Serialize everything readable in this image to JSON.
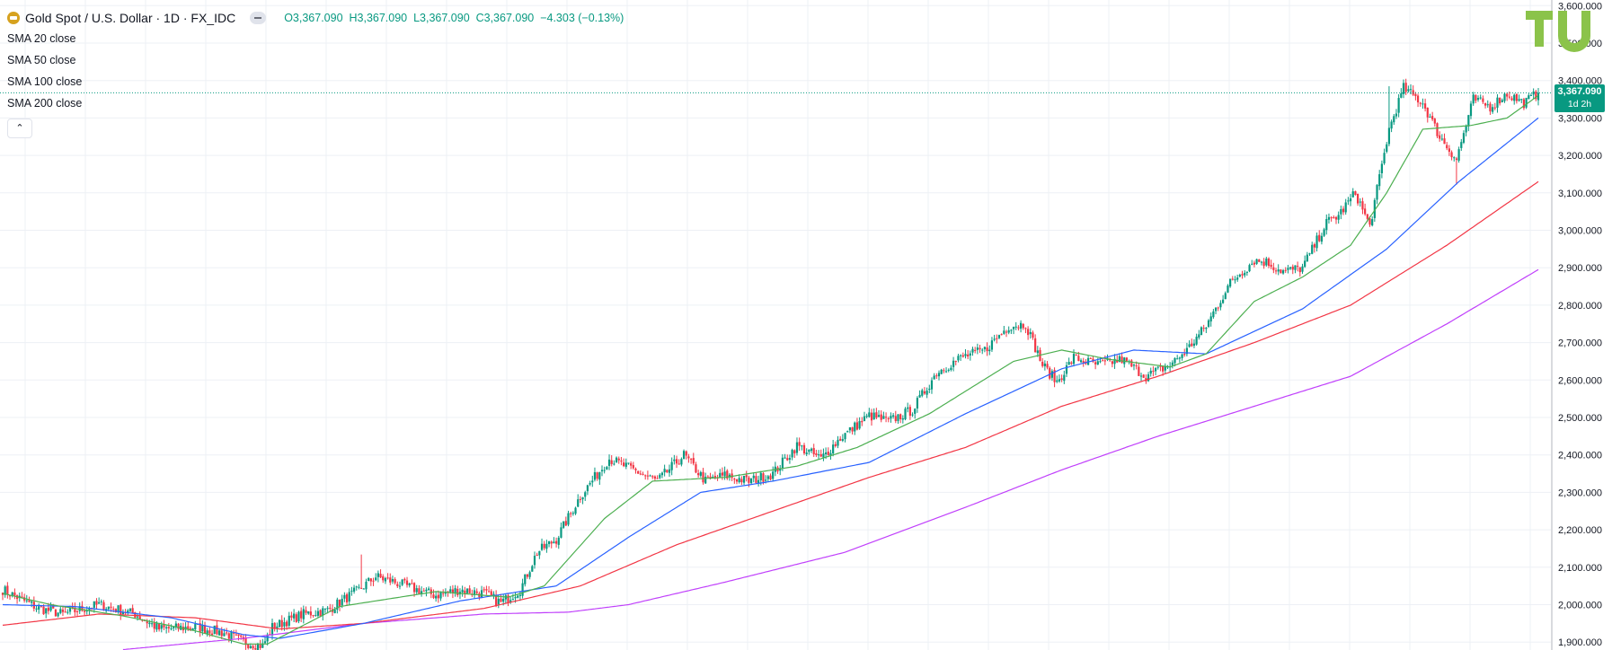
{
  "header": {
    "symbol_title": "Gold Spot / U.S. Dollar · 1D · FX_IDC",
    "open": "3,367.090",
    "high": "3,367.090",
    "low": "3,367.090",
    "close": "3,367.090",
    "change": "−4.303 (−0.13%)",
    "labels": {
      "o": "O",
      "h": "H",
      "l": "L",
      "c": "C"
    }
  },
  "indicators": [
    "SMA 20 close",
    "SMA 50 close",
    "SMA 100 close",
    "SMA 200 close"
  ],
  "last_price_tag": {
    "price": "3,367.090",
    "countdown": "1d 2h"
  },
  "colors": {
    "up": "#089981",
    "down": "#f23645",
    "sma20": "#4caf50",
    "sma50": "#2962ff",
    "sma100": "#f23645",
    "sma200": "#c040fb",
    "grid": "#edf0f5",
    "axis_text": "#131722",
    "logo": "#8bc34a"
  },
  "chart_data": {
    "type": "candlestick",
    "title": "Gold Spot / U.S. Dollar · 1D · FX_IDC",
    "ylim": [
      1880,
      3620
    ],
    "y_ticks": [
      1900,
      2000,
      2100,
      2200,
      2300,
      2400,
      2500,
      2600,
      2700,
      2800,
      2900,
      3000,
      3100,
      3200,
      3300,
      3400,
      3500,
      3600
    ],
    "y_tick_labels": [
      "1,900.000",
      "2,000.000",
      "2,100.000",
      "2,200.000",
      "2,300.000",
      "2,400.000",
      "2,500.000",
      "2,600.000",
      "2,700.000",
      "2,800.000",
      "2,900.000",
      "3,000.000",
      "3,100.000",
      "3,200.000",
      "3,300.000",
      "3,400.000",
      "3,500.000",
      "3,600.000"
    ],
    "last_price": 3367.09,
    "close_key_points": [
      [
        0,
        2040
      ],
      [
        15,
        1990
      ],
      [
        25,
        1975
      ],
      [
        40,
        2000
      ],
      [
        55,
        1975
      ],
      [
        65,
        1935
      ],
      [
        80,
        1940
      ],
      [
        92,
        1925
      ],
      [
        100,
        1900
      ],
      [
        108,
        1890
      ],
      [
        112,
        1940
      ],
      [
        125,
        1975
      ],
      [
        135,
        1985
      ],
      [
        148,
        2040
      ],
      [
        155,
        2075
      ],
      [
        163,
        2060
      ],
      [
        172,
        2040
      ],
      [
        180,
        2025
      ],
      [
        190,
        2040
      ],
      [
        200,
        2030
      ],
      [
        207,
        2005
      ],
      [
        215,
        2040
      ],
      [
        222,
        2140
      ],
      [
        230,
        2175
      ],
      [
        240,
        2290
      ],
      [
        252,
        2390
      ],
      [
        262,
        2360
      ],
      [
        272,
        2330
      ],
      [
        283,
        2400
      ],
      [
        292,
        2330
      ],
      [
        300,
        2345
      ],
      [
        310,
        2330
      ],
      [
        320,
        2350
      ],
      [
        330,
        2425
      ],
      [
        340,
        2390
      ],
      [
        348,
        2445
      ],
      [
        360,
        2505
      ],
      [
        368,
        2490
      ],
      [
        378,
        2520
      ],
      [
        388,
        2620
      ],
      [
        398,
        2660
      ],
      [
        408,
        2680
      ],
      [
        418,
        2745
      ],
      [
        425,
        2750
      ],
      [
        432,
        2640
      ],
      [
        438,
        2595
      ],
      [
        445,
        2660
      ],
      [
        455,
        2640
      ],
      [
        465,
        2655
      ],
      [
        475,
        2610
      ],
      [
        485,
        2640
      ],
      [
        492,
        2680
      ],
      [
        500,
        2745
      ],
      [
        510,
        2860
      ],
      [
        520,
        2920
      ],
      [
        525,
        2915
      ],
      [
        532,
        2890
      ],
      [
        540,
        2900
      ],
      [
        550,
        3020
      ],
      [
        555,
        3040
      ],
      [
        562,
        3100
      ],
      [
        568,
        3010
      ],
      [
        576,
        3270
      ],
      [
        582,
        3380
      ],
      [
        590,
        3340
      ],
      [
        597,
        3250
      ],
      [
        604,
        3190
      ],
      [
        611,
        3350
      ],
      [
        618,
        3330
      ],
      [
        625,
        3365
      ],
      [
        632,
        3340
      ],
      [
        638,
        3367
      ]
    ],
    "sma_20_key_points": [
      [
        0,
        2030
      ],
      [
        20,
        2000
      ],
      [
        50,
        1970
      ],
      [
        80,
        1930
      ],
      [
        100,
        1895
      ],
      [
        110,
        1895
      ],
      [
        140,
        1995
      ],
      [
        180,
        2035
      ],
      [
        210,
        2020
      ],
      [
        225,
        2050
      ],
      [
        250,
        2230
      ],
      [
        270,
        2330
      ],
      [
        300,
        2340
      ],
      [
        330,
        2370
      ],
      [
        355,
        2420
      ],
      [
        385,
        2510
      ],
      [
        420,
        2650
      ],
      [
        440,
        2680
      ],
      [
        460,
        2655
      ],
      [
        485,
        2635
      ],
      [
        500,
        2670
      ],
      [
        520,
        2810
      ],
      [
        540,
        2875
      ],
      [
        560,
        2960
      ],
      [
        575,
        3100
      ],
      [
        590,
        3270
      ],
      [
        610,
        3280
      ],
      [
        625,
        3300
      ],
      [
        638,
        3360
      ]
    ],
    "sma_50_key_points": [
      [
        0,
        2000
      ],
      [
        30,
        1995
      ],
      [
        70,
        1965
      ],
      [
        100,
        1920
      ],
      [
        115,
        1910
      ],
      [
        150,
        1950
      ],
      [
        190,
        2010
      ],
      [
        230,
        2050
      ],
      [
        260,
        2180
      ],
      [
        290,
        2300
      ],
      [
        320,
        2330
      ],
      [
        360,
        2380
      ],
      [
        400,
        2510
      ],
      [
        440,
        2630
      ],
      [
        470,
        2680
      ],
      [
        500,
        2670
      ],
      [
        540,
        2790
      ],
      [
        575,
        2950
      ],
      [
        605,
        3130
      ],
      [
        638,
        3300
      ]
    ],
    "sma_100_key_points": [
      [
        0,
        1945
      ],
      [
        40,
        1975
      ],
      [
        80,
        1965
      ],
      [
        115,
        1935
      ],
      [
        150,
        1950
      ],
      [
        200,
        1990
      ],
      [
        240,
        2050
      ],
      [
        280,
        2160
      ],
      [
        320,
        2250
      ],
      [
        360,
        2340
      ],
      [
        400,
        2420
      ],
      [
        440,
        2530
      ],
      [
        480,
        2610
      ],
      [
        520,
        2700
      ],
      [
        560,
        2800
      ],
      [
        600,
        2960
      ],
      [
        638,
        3130
      ]
    ],
    "sma_200_key_points": [
      [
        50,
        1880
      ],
      [
        100,
        1910
      ],
      [
        150,
        1950
      ],
      [
        200,
        1975
      ],
      [
        235,
        1980
      ],
      [
        260,
        2000
      ],
      [
        300,
        2060
      ],
      [
        350,
        2140
      ],
      [
        400,
        2260
      ],
      [
        440,
        2360
      ],
      [
        480,
        2450
      ],
      [
        520,
        2530
      ],
      [
        560,
        2610
      ],
      [
        600,
        2750
      ],
      [
        638,
        2895
      ]
    ]
  }
}
